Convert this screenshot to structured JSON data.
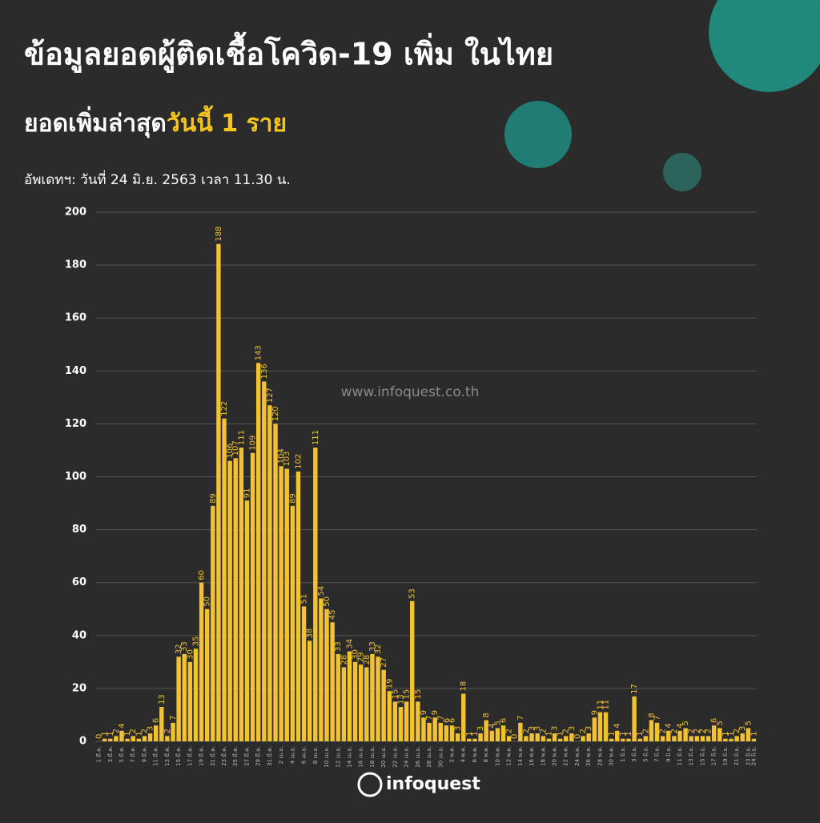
{
  "header": {
    "title": "ข้อมูลยอดผู้ติดเชื้อโควิด-19 เพิ่ม ในไทย",
    "subtitle_prefix": "ยอดเพิ่มล่าสุด",
    "subtitle_highlight": "วันนี้ 1 ราย",
    "update": "อัพเดทฯ: วันที่ 24 มิ.ย. 2563 เวลา 11.30 น."
  },
  "watermark": "www.infoquest.co.th",
  "logo": "infoquest",
  "chart_data": {
    "type": "bar",
    "color": "#f2c230",
    "grid": true,
    "ylim": [
      0,
      200
    ],
    "yticks": [
      0,
      20,
      40,
      60,
      80,
      100,
      120,
      140,
      160,
      180,
      200
    ],
    "categories": [
      "1 มี.ค.",
      null,
      "3 มี.ค.",
      null,
      "5 มี.ค.",
      null,
      "7 มี.ค.",
      null,
      "9 มี.ค.",
      null,
      "11 มี.ค.",
      null,
      "13 มี.ค.",
      null,
      "15 มี.ค.",
      null,
      "17 มี.ค.",
      null,
      "19 มี.ค.",
      null,
      "21 มี.ค.",
      null,
      "23 มี.ค.",
      null,
      "25 มี.ค.",
      null,
      "27 มี.ค.",
      null,
      "29 มี.ค.",
      null,
      "31 มี.ค.",
      null,
      "2 เม.ย.",
      null,
      "4 เม.ย.",
      null,
      "6 เม.ย.",
      null,
      "8 เม.ย.",
      null,
      "10 เม.ย.",
      null,
      "12 เม.ย.",
      null,
      "14 เม.ย.",
      null,
      "16 เม.ย.",
      null,
      "18 เม.ย.",
      null,
      "20 เม.ย.",
      null,
      "22 เม.ย.",
      null,
      "24 เม.ย.",
      null,
      "26 เม.ย.",
      null,
      "28 เม.ย.",
      null,
      "30 เม.ย.",
      null,
      "2 พ.ค.",
      null,
      "4 พ.ค.",
      null,
      "6 พ.ค.",
      null,
      "8 พ.ค.",
      null,
      "10 พ.ค.",
      null,
      "12 พ.ค.",
      null,
      "14 พ.ค.",
      null,
      "16 พ.ค.",
      null,
      "18 พ.ค.",
      null,
      "20 พ.ค.",
      null,
      "22 พ.ค.",
      null,
      "24 พ.ค.",
      null,
      "26 พ.ค.",
      null,
      "28 พ.ค.",
      null,
      "30 พ.ค.",
      null,
      "1 มิ.ย.",
      null,
      "3 มิ.ย.",
      null,
      "5 มิ.ย.",
      null,
      "7 มิ.ย.",
      null,
      "9 มิ.ย.",
      null,
      "11 มิ.ย.",
      null,
      "13 มิ.ย.",
      null,
      "15 มิ.ย.",
      null,
      "17 มิ.ย.",
      null,
      "19 มิ.ย.",
      null,
      "21 มิ.ย.",
      null,
      "23 มิ.ย.",
      "24 มิ.ย."
    ],
    "values": [
      0,
      1,
      1,
      2,
      4,
      1,
      2,
      1,
      2,
      3,
      6,
      13,
      2,
      7,
      32,
      33,
      30,
      35,
      60,
      50,
      89,
      188,
      122,
      106,
      107,
      111,
      91,
      109,
      143,
      136,
      127,
      120,
      104,
      103,
      89,
      102,
      51,
      38,
      111,
      54,
      50,
      45,
      33,
      28,
      34,
      30,
      29,
      28,
      33,
      32,
      27,
      19,
      15,
      13,
      15,
      53,
      15,
      9,
      7,
      9,
      7,
      6,
      6,
      3,
      18,
      1,
      1,
      3,
      8,
      4,
      5,
      6,
      2,
      0,
      7,
      2,
      3,
      3,
      2,
      1,
      3,
      1,
      2,
      3,
      0,
      2,
      3,
      9,
      11,
      11,
      1,
      4,
      1,
      1,
      17,
      1,
      2,
      8,
      7,
      2,
      4,
      2,
      4,
      5,
      2,
      2,
      2,
      2,
      6,
      5,
      1,
      1,
      2,
      3,
      5,
      1
    ]
  }
}
